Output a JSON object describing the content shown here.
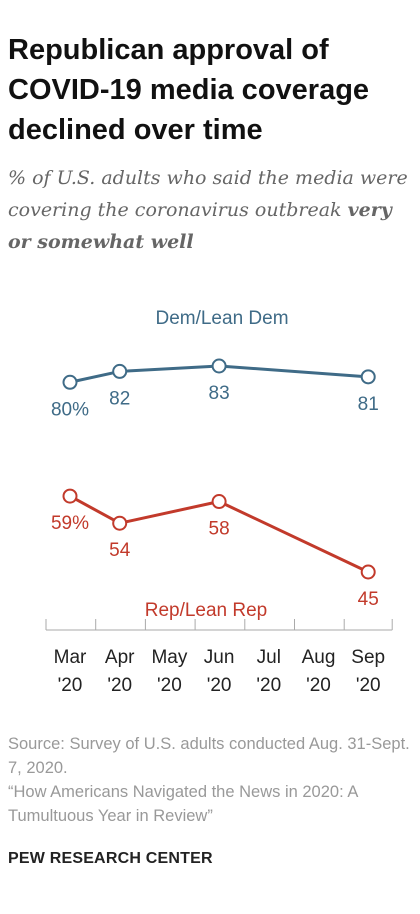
{
  "header": {
    "title": "Republican approval of COVID-19 media coverage declined over time",
    "subtitle_plain": "% of U.S. adults who said the media were covering the coronavirus outbreak ",
    "subtitle_emphasis": "very or somewhat well"
  },
  "footer": {
    "source": "Source: Survey of U.S. adults conducted Aug. 31-Sept. 7, 2020.",
    "citation": "“How Americans Navigated the News in 2020: A Tumultuous Year in Review”",
    "brand": "PEW RESEARCH CENTER"
  },
  "chart_data": {
    "type": "line",
    "title": "Republican approval of COVID-19 media coverage declined over time",
    "categories": [
      [
        "Mar",
        "'20"
      ],
      [
        "Apr",
        "'20"
      ],
      [
        "May",
        "'20"
      ],
      [
        "Jun",
        "'20"
      ],
      [
        "Jul",
        "'20"
      ],
      [
        "Aug",
        "'20"
      ],
      [
        "Sep",
        "'20"
      ]
    ],
    "ylim": [
      40,
      90
    ],
    "grid": false,
    "series": [
      {
        "name": "Dem/Lean Dem",
        "color": "#3f6b87",
        "points": [
          {
            "cat": 0,
            "value": 80,
            "label": "80%"
          },
          {
            "cat": 1,
            "value": 82,
            "label": "82"
          },
          {
            "cat": 3,
            "value": 83,
            "label": "83"
          },
          {
            "cat": 6,
            "value": 81,
            "label": "81"
          }
        ]
      },
      {
        "name": "Rep/Lean Rep",
        "color": "#c23a2b",
        "points": [
          {
            "cat": 0,
            "value": 59,
            "label": "59%"
          },
          {
            "cat": 1,
            "value": 54,
            "label": "54"
          },
          {
            "cat": 3,
            "value": 58,
            "label": "58"
          },
          {
            "cat": 6,
            "value": 45,
            "label": "45"
          }
        ]
      }
    ]
  }
}
